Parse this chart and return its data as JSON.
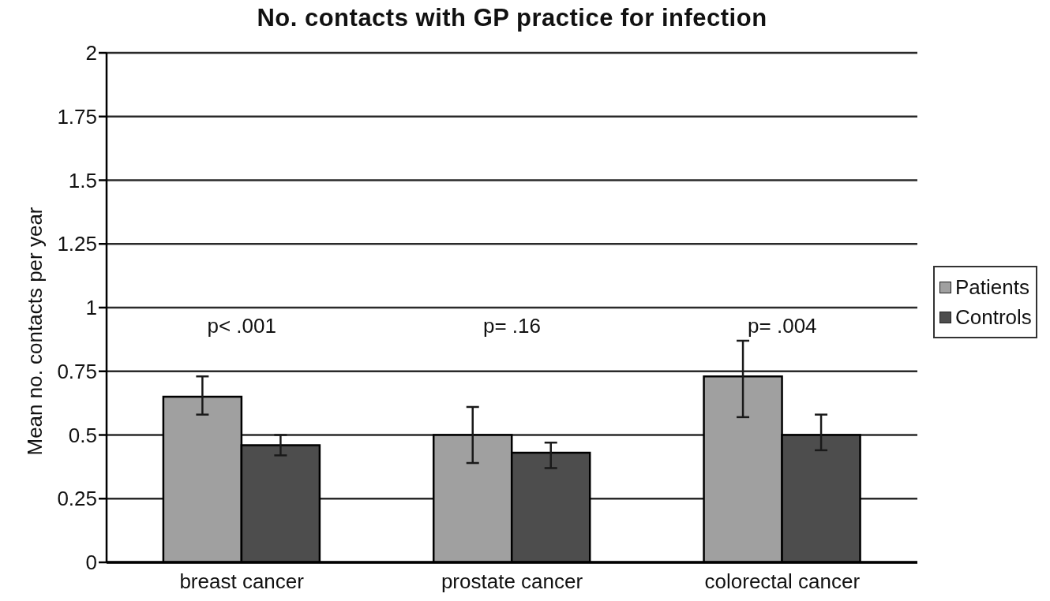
{
  "chart_data": {
    "type": "bar",
    "title": "No. contacts with GP practice for infection",
    "ylabel": "Mean no. contacts per year",
    "categories": [
      "breast cancer",
      "prostate cancer",
      "colorectal cancer"
    ],
    "series": [
      {
        "name": "Patients",
        "color": "#a0a0a0",
        "values": [
          0.65,
          0.5,
          0.73
        ],
        "errors": [
          [
            0.58,
            0.73
          ],
          [
            0.39,
            0.61
          ],
          [
            0.57,
            0.87
          ]
        ]
      },
      {
        "name": "Controls",
        "color": "#4d4d4d",
        "values": [
          0.46,
          0.43,
          0.5
        ],
        "errors": [
          [
            0.42,
            0.5
          ],
          [
            0.37,
            0.47
          ],
          [
            0.44,
            0.58
          ]
        ]
      }
    ],
    "ylim": [
      0,
      2
    ],
    "yticks": [
      0,
      0.25,
      0.5,
      0.75,
      1,
      1.25,
      1.5,
      1.75,
      2
    ],
    "grid": "y",
    "legend": "right",
    "annotations": [
      "p< .001",
      "p= .16",
      "p= .004"
    ]
  }
}
